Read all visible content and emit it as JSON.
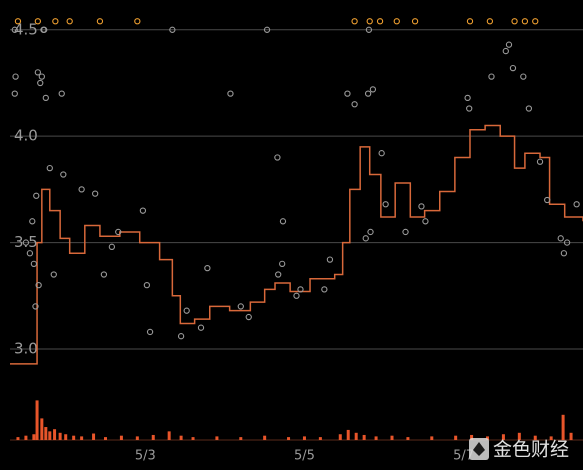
{
  "chart_data": {
    "type": "line",
    "step": true,
    "xlim": [
      1.3,
      8.5
    ],
    "xticks": [
      {
        "value": 3,
        "label": "5/3"
      },
      {
        "value": 5,
        "label": "5/5"
      },
      {
        "value": 7,
        "label": "5/7"
      }
    ],
    "ylim": [
      2.92,
      4.64
    ],
    "yticks": [
      {
        "value": 3,
        "label": "3.0"
      },
      3.5,
      {
        "value": 4,
        "label": "4.0"
      },
      4.5
    ],
    "grid": true,
    "series": [
      {
        "kind": "step",
        "color": "#d8683a",
        "x": [
          1.3,
          1.64,
          1.7,
          1.8,
          1.93,
          2.05,
          2.24,
          2.43,
          2.68,
          2.93,
          3.18,
          3.34,
          3.44,
          3.62,
          3.81,
          4.06,
          4.32,
          4.5,
          4.63,
          4.82,
          5.07,
          5.38,
          5.48,
          5.57,
          5.7,
          5.82,
          5.96,
          6.14,
          6.33,
          6.51,
          6.7,
          6.89,
          7.08,
          7.27,
          7.46,
          7.64,
          7.77,
          7.96,
          8.08,
          8.27,
          8.5
        ],
        "values": [
          2.93,
          3.5,
          3.75,
          3.65,
          3.52,
          3.45,
          3.58,
          3.53,
          3.55,
          3.5,
          3.42,
          3.25,
          3.12,
          3.14,
          3.2,
          3.18,
          3.22,
          3.28,
          3.31,
          3.27,
          3.33,
          3.35,
          3.5,
          3.75,
          3.95,
          3.82,
          3.62,
          3.78,
          3.62,
          3.65,
          3.74,
          3.9,
          4.03,
          4.05,
          4.0,
          3.85,
          3.92,
          3.9,
          3.68,
          3.62,
          3.6
        ]
      },
      {
        "kind": "scatter",
        "color": "#9a9a9a",
        "x": [
          1.36,
          1.37,
          1.36,
          1.73,
          1.7,
          1.68,
          1.65,
          1.95,
          1.75,
          1.8,
          1.97,
          2.2,
          2.37,
          2.48,
          1.85,
          2.58,
          2.97,
          3.02,
          3.34,
          3.06,
          3.45,
          3.7,
          4.07,
          4.53,
          4.66,
          4.73,
          4.72,
          4.67,
          3.78,
          4.3,
          4.9,
          5.25,
          5.54,
          5.63,
          5.8,
          5.86,
          5.97,
          5.77,
          5.83,
          6.02,
          6.27,
          6.47,
          6.52,
          7.05,
          7.07,
          7.35,
          7.53,
          7.62,
          7.57,
          7.75,
          7.82,
          7.96,
          8.05,
          8.22,
          8.26,
          8.3,
          8.42,
          1.5,
          1.6,
          1.62,
          1.58,
          1.66,
          2.66,
          3.52,
          5.32,
          4.2,
          4.95,
          1.55,
          1.63,
          1.72,
          5.81
        ],
        "values": [
          4.5,
          4.28,
          4.2,
          4.5,
          4.28,
          4.25,
          4.3,
          4.2,
          4.18,
          3.85,
          3.82,
          3.75,
          3.73,
          3.35,
          3.35,
          3.48,
          3.65,
          3.3,
          4.5,
          3.08,
          3.06,
          3.1,
          4.2,
          4.5,
          3.9,
          3.6,
          3.4,
          3.35,
          3.38,
          3.15,
          3.25,
          3.28,
          4.2,
          4.15,
          4.2,
          4.22,
          3.92,
          3.52,
          3.55,
          3.68,
          3.55,
          3.67,
          3.6,
          4.18,
          4.13,
          4.28,
          4.4,
          4.32,
          4.43,
          4.28,
          4.13,
          3.88,
          3.7,
          3.52,
          3.45,
          3.5,
          3.68,
          3.5,
          3.4,
          3.2,
          3.6,
          3.3,
          3.55,
          3.18,
          3.42,
          3.2,
          3.28,
          3.45,
          3.72,
          4.5,
          4.5
        ]
      },
      {
        "kind": "scatter",
        "color": "#f0a030",
        "x": [
          1.4,
          1.65,
          1.87,
          2.05,
          2.43,
          2.9,
          5.63,
          5.82,
          5.95,
          6.16,
          6.39,
          7.08,
          7.33,
          7.64,
          7.77,
          7.9
        ],
        "values": [
          4.54,
          4.54,
          4.54,
          4.54,
          4.54,
          4.54,
          4.54,
          4.54,
          4.54,
          4.54,
          4.54,
          4.54,
          4.54,
          4.54,
          4.54,
          4.54
        ]
      }
    ],
    "volume": {
      "color": "#e8552a",
      "ylim": [
        0,
        100
      ],
      "x": [
        1.4,
        1.5,
        1.6,
        1.64,
        1.7,
        1.75,
        1.8,
        1.86,
        1.93,
        2.0,
        2.1,
        2.2,
        2.35,
        2.5,
        2.7,
        2.9,
        3.1,
        3.3,
        3.45,
        3.6,
        3.9,
        4.2,
        4.5,
        4.8,
        5.0,
        5.2,
        5.45,
        5.55,
        5.65,
        5.75,
        5.9,
        6.1,
        6.3,
        6.6,
        6.9,
        7.1,
        7.3,
        7.5,
        7.7,
        7.9,
        8.1,
        8.25,
        8.35
      ],
      "values": [
        4,
        6,
        8,
        55,
        30,
        18,
        12,
        15,
        10,
        8,
        6,
        5,
        9,
        4,
        6,
        5,
        7,
        12,
        6,
        4,
        5,
        4,
        6,
        4,
        5,
        4,
        8,
        14,
        10,
        7,
        5,
        6,
        4,
        5,
        6,
        7,
        5,
        8,
        10,
        6,
        5,
        35,
        10
      ]
    },
    "watermark": "金色财经"
  }
}
